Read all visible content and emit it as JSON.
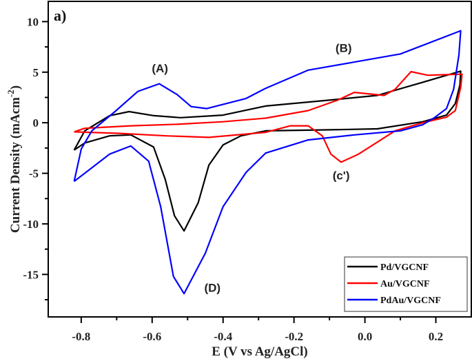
{
  "chart_data": {
    "type": "line",
    "panel_label": "a)",
    "xlabel": "E (V vs Ag/AgCl)",
    "ylabel": "Current Density (mAcm",
    "ylabel_sup": "-2",
    "ylabel_close": ")",
    "xlim": [
      -0.893,
      0.3
    ],
    "ylim": [
      -19.2,
      12.0
    ],
    "xticks": [
      -0.8,
      -0.6,
      -0.4,
      -0.2,
      0.0,
      0.2
    ],
    "xtick_labels": [
      "-0.8",
      "-0.6",
      "-0.4",
      "-0.2",
      "0.0",
      "0.2"
    ],
    "yticks": [
      10,
      5,
      0,
      -5,
      -10,
      -15
    ],
    "ytick_labels": [
      "10",
      "5",
      "0",
      "-5",
      "-10",
      "-15"
    ],
    "grid": false,
    "legend_position": "bottom-right",
    "series": [
      {
        "name": "Pd/VGCNF",
        "color": "#000000",
        "points": [
          [
            -0.82,
            -2.7
          ],
          [
            -0.79,
            -0.8
          ],
          [
            -0.72,
            0.7
          ],
          [
            -0.665,
            1.1
          ],
          [
            -0.595,
            0.7
          ],
          [
            -0.52,
            0.5
          ],
          [
            -0.4,
            0.75
          ],
          [
            -0.28,
            1.65
          ],
          [
            -0.096,
            2.25
          ],
          [
            0.035,
            2.7
          ],
          [
            0.163,
            4.0
          ],
          [
            0.27,
            5.1
          ],
          [
            0.268,
            3.75
          ],
          [
            0.255,
            1.9
          ],
          [
            0.23,
            0.75
          ],
          [
            0.163,
            0.1
          ],
          [
            0.035,
            -0.6
          ],
          [
            -0.096,
            -0.7
          ],
          [
            -0.28,
            -0.8
          ],
          [
            -0.35,
            -1.3
          ],
          [
            -0.4,
            -2.2
          ],
          [
            -0.44,
            -4.2
          ],
          [
            -0.47,
            -7.9
          ],
          [
            -0.51,
            -10.7
          ],
          [
            -0.537,
            -9.2
          ],
          [
            -0.563,
            -5.6
          ],
          [
            -0.596,
            -2.4
          ],
          [
            -0.66,
            -1.2
          ],
          [
            -0.72,
            -1.3
          ],
          [
            -0.79,
            -2.0
          ],
          [
            -0.82,
            -2.7
          ]
        ]
      },
      {
        "name": "Au/VGCNF",
        "color": "#ff0000",
        "points": [
          [
            -0.82,
            -0.9
          ],
          [
            -0.79,
            -0.55
          ],
          [
            -0.66,
            -0.3
          ],
          [
            -0.53,
            -0.15
          ],
          [
            -0.4,
            0.1
          ],
          [
            -0.28,
            0.45
          ],
          [
            -0.16,
            1.2
          ],
          [
            -0.076,
            2.25
          ],
          [
            -0.03,
            3.0
          ],
          [
            0.054,
            2.7
          ],
          [
            0.085,
            3.3
          ],
          [
            0.13,
            5.05
          ],
          [
            0.177,
            4.7
          ],
          [
            0.274,
            4.8
          ],
          [
            0.27,
            3.5
          ],
          [
            0.255,
            1.2
          ],
          [
            0.23,
            0.55
          ],
          [
            0.163,
            0.0
          ],
          [
            0.085,
            -0.8
          ],
          [
            -0.018,
            -3.1
          ],
          [
            -0.067,
            -3.9
          ],
          [
            -0.096,
            -3.1
          ],
          [
            -0.12,
            -1.3
          ],
          [
            -0.16,
            -0.3
          ],
          [
            -0.21,
            -0.3
          ],
          [
            -0.28,
            -0.95
          ],
          [
            -0.44,
            -1.45
          ],
          [
            -0.56,
            -1.3
          ],
          [
            -0.69,
            -1.05
          ],
          [
            -0.82,
            -0.9
          ]
        ]
      },
      {
        "name": "PdAu/VGCNF",
        "color": "#0000ff",
        "points": [
          [
            -0.82,
            -5.8
          ],
          [
            -0.8,
            -2.6
          ],
          [
            -0.77,
            -0.8
          ],
          [
            -0.705,
            1.1
          ],
          [
            -0.64,
            3.1
          ],
          [
            -0.58,
            3.85
          ],
          [
            -0.53,
            2.8
          ],
          [
            -0.49,
            1.6
          ],
          [
            -0.446,
            1.4
          ],
          [
            -0.335,
            2.4
          ],
          [
            -0.28,
            3.4
          ],
          [
            -0.16,
            5.2
          ],
          [
            -0.03,
            6.0
          ],
          [
            0.1,
            6.8
          ],
          [
            0.27,
            9.1
          ],
          [
            0.265,
            6.7
          ],
          [
            0.25,
            3.3
          ],
          [
            0.23,
            1.4
          ],
          [
            0.196,
            0.5
          ],
          [
            0.163,
            -0.2
          ],
          [
            0.1,
            -0.8
          ],
          [
            -0.03,
            -1.2
          ],
          [
            -0.16,
            -1.7
          ],
          [
            -0.28,
            -3.0
          ],
          [
            -0.335,
            -4.9
          ],
          [
            -0.4,
            -8.3
          ],
          [
            -0.45,
            -12.9
          ],
          [
            -0.51,
            -16.9
          ],
          [
            -0.54,
            -15.2
          ],
          [
            -0.576,
            -8.3
          ],
          [
            -0.61,
            -3.8
          ],
          [
            -0.66,
            -2.3
          ],
          [
            -0.72,
            -3.1
          ],
          [
            -0.82,
            -5.8
          ]
        ]
      }
    ],
    "annotations": [
      {
        "text": "(A)",
        "x": -0.578,
        "y": 5.0
      },
      {
        "text": "(B)",
        "x": -0.06,
        "y": 7.0
      },
      {
        "text": "(c')",
        "x": -0.067,
        "y": -5.6
      },
      {
        "text": "(D)",
        "x": -0.43,
        "y": -16.7
      }
    ]
  }
}
